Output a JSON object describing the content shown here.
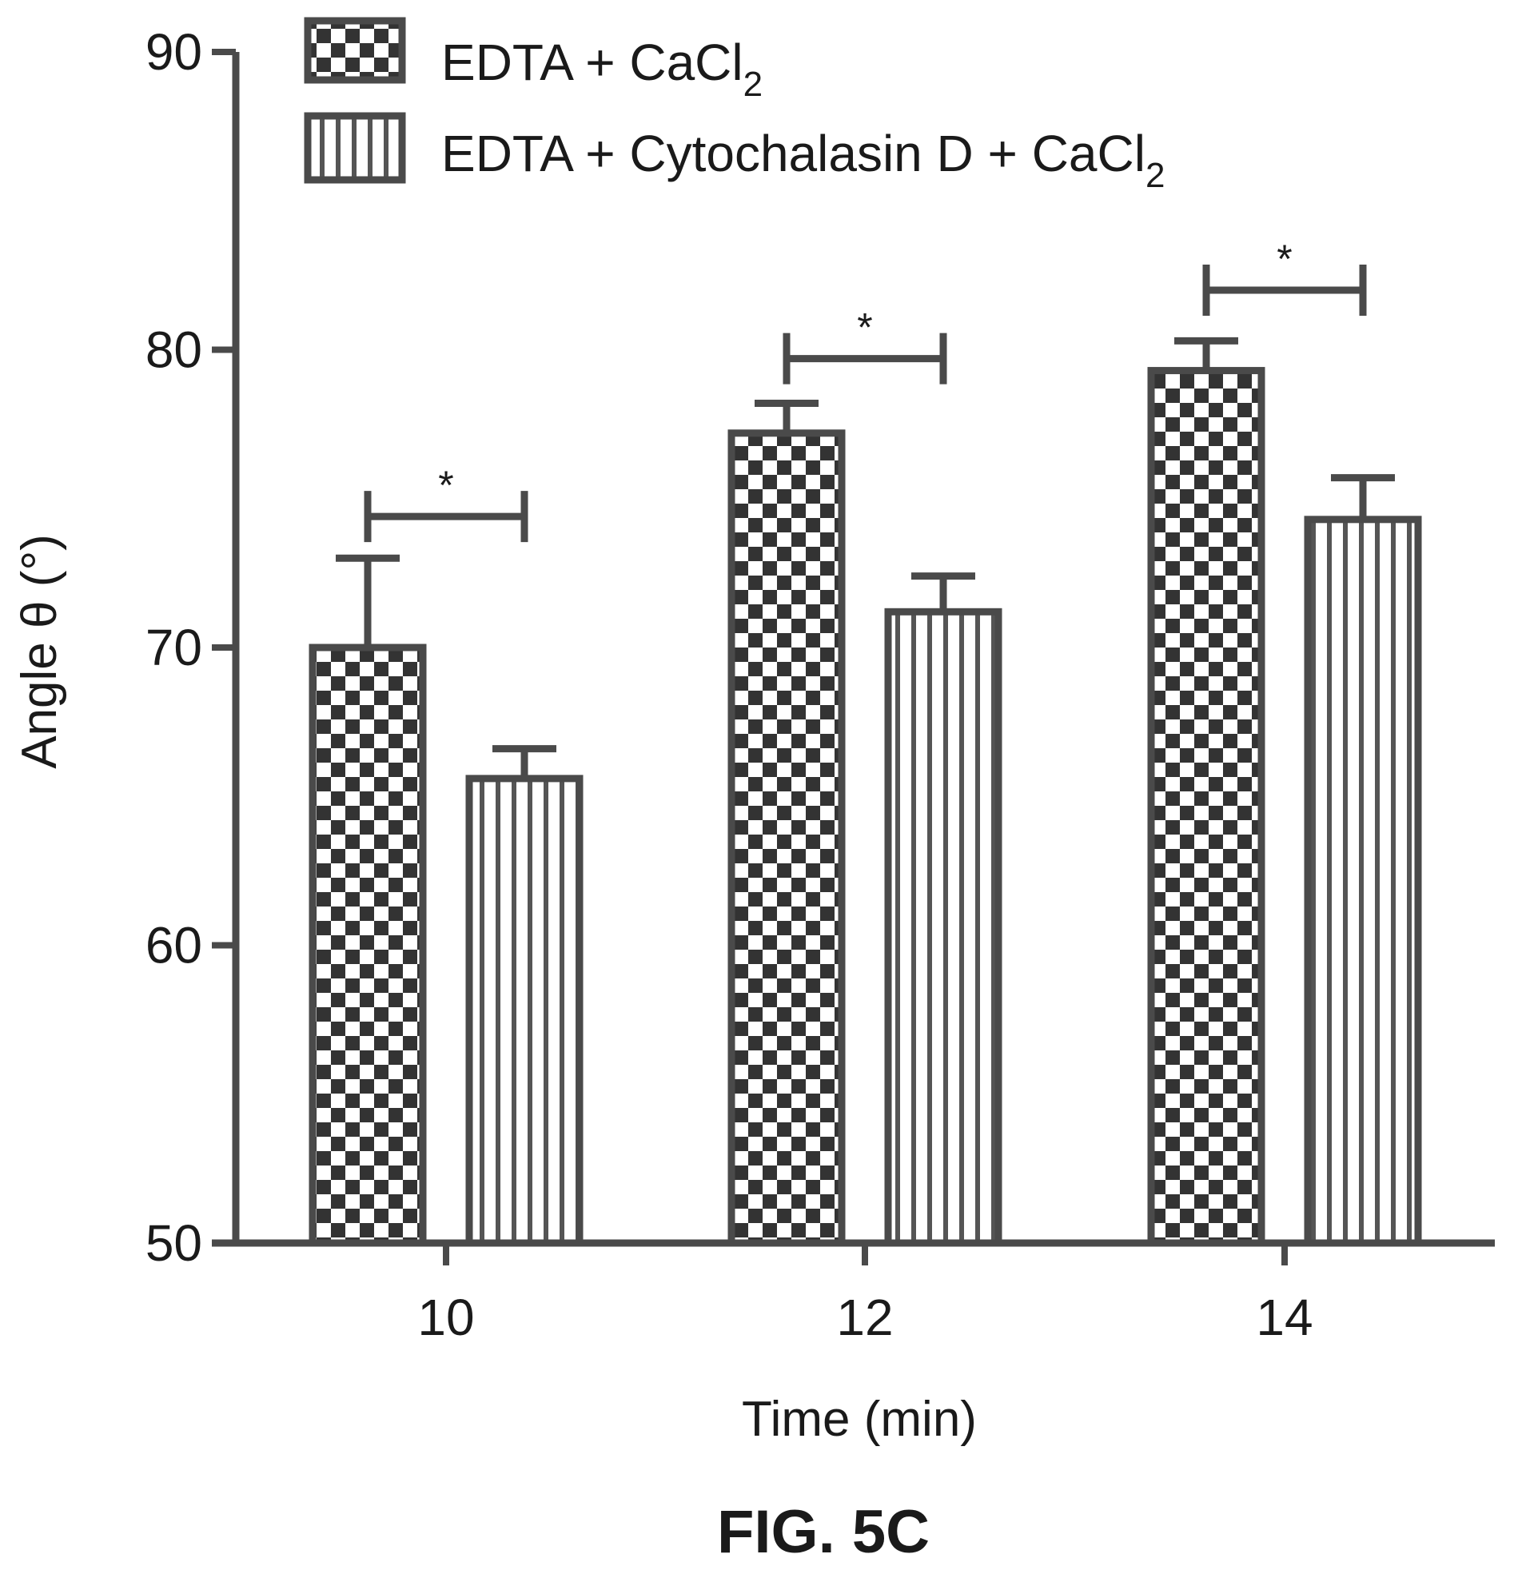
{
  "chart_data": {
    "type": "bar",
    "xlabel": "Time (min)",
    "ylabel": "Angle θ (°)",
    "ylim": [
      50,
      90
    ],
    "yticks": [
      50,
      60,
      70,
      80,
      90
    ],
    "categories": [
      "10",
      "12",
      "14"
    ],
    "series": [
      {
        "name": "EDTA + CaCl",
        "name_subscript": "2",
        "pattern": "checkerboard",
        "values": [
          70.0,
          77.2,
          79.3
        ],
        "errors": [
          3.0,
          1.0,
          1.0
        ]
      },
      {
        "name": "EDTA + Cytochalasin D + CaCl",
        "name_subscript": "2",
        "pattern": "vertical-stripes",
        "values": [
          65.6,
          71.2,
          74.3
        ],
        "errors": [
          1.0,
          1.2,
          1.4
        ]
      }
    ],
    "significance": [
      {
        "category": "10",
        "label": "*",
        "y": 74.4
      },
      {
        "category": "12",
        "label": "*",
        "y": 79.7
      },
      {
        "category": "14",
        "label": "*",
        "y": 82.0
      }
    ],
    "legend_position": "top",
    "grid": false
  },
  "figure_label": "FIG. 5C",
  "colors": {
    "stroke": "#4a4a4a",
    "text": "#1a1a1a",
    "background": "#ffffff"
  }
}
